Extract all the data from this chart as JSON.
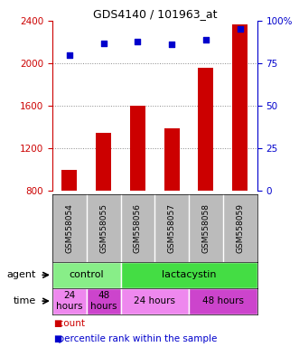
{
  "title": "GDS4140 / 101963_at",
  "samples": [
    "GSM558054",
    "GSM558055",
    "GSM558056",
    "GSM558057",
    "GSM558058",
    "GSM558059"
  ],
  "counts": [
    1000,
    1350,
    1600,
    1390,
    1960,
    2370
  ],
  "percentiles": [
    80,
    87,
    88,
    86,
    89,
    95
  ],
  "ylim_left": [
    800,
    2400
  ],
  "ylim_right": [
    0,
    100
  ],
  "yticks_left": [
    800,
    1200,
    1600,
    2000,
    2400
  ],
  "yticks_right": [
    0,
    25,
    50,
    75,
    100
  ],
  "bar_color": "#cc0000",
  "dot_color": "#0000cc",
  "bar_bottom": 800,
  "agent_groups": [
    {
      "label": "control",
      "start": 0,
      "end": 2,
      "color": "#88ee88"
    },
    {
      "label": "lactacystin",
      "start": 2,
      "end": 6,
      "color": "#44dd44"
    }
  ],
  "time_groups": [
    {
      "label": "24\nhours",
      "start": 0,
      "end": 1,
      "color": "#ee88ee"
    },
    {
      "label": "48\nhours",
      "start": 1,
      "end": 2,
      "color": "#cc44cc"
    },
    {
      "label": "24 hours",
      "start": 2,
      "end": 4,
      "color": "#ee88ee"
    },
    {
      "label": "48 hours",
      "start": 4,
      "end": 6,
      "color": "#cc44cc"
    }
  ],
  "grid_color": "#888888",
  "bg_color": "#ffffff",
  "label_area_color": "#bbbbbb"
}
